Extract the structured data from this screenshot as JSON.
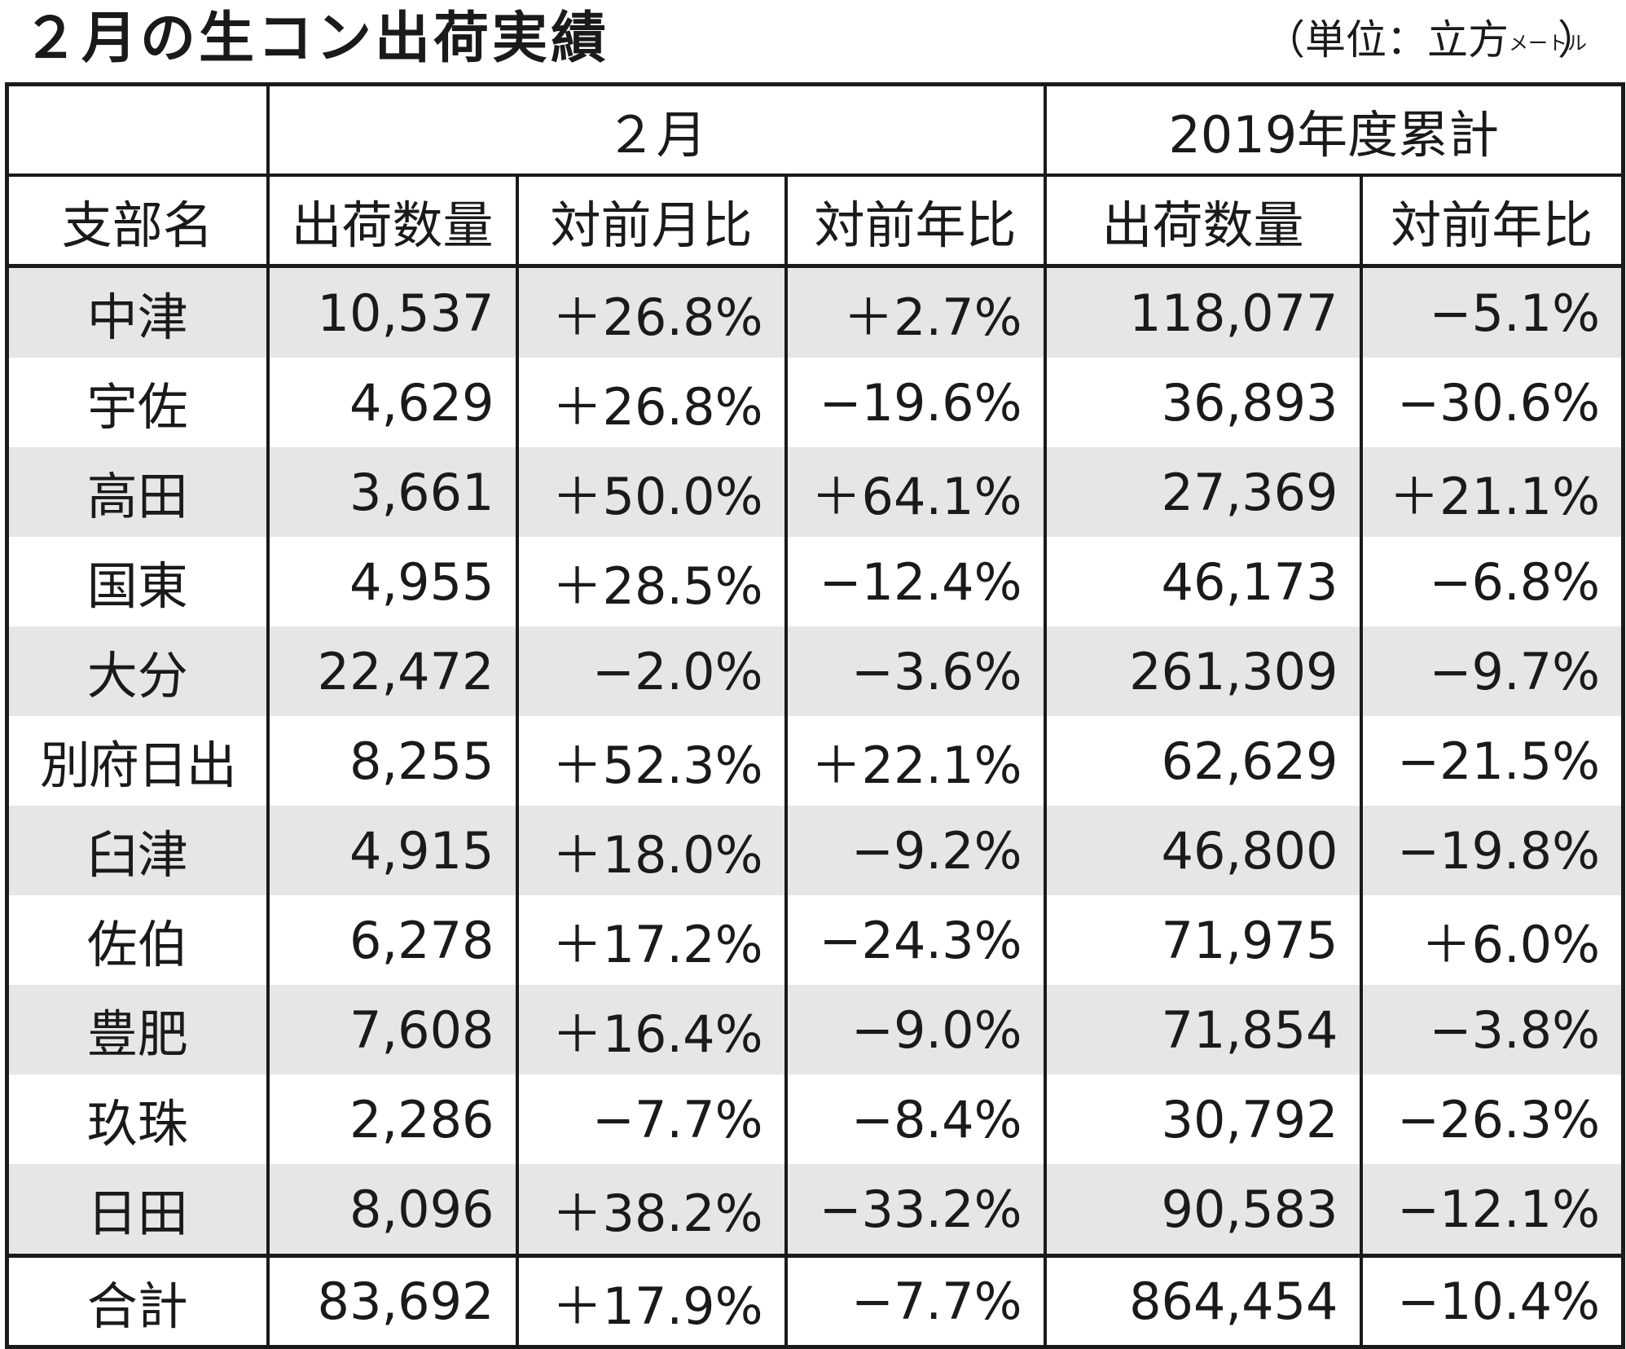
{
  "title": "２月の生コン出荷実績",
  "unit": {
    "prefix": "（単位：立方",
    "meter": "メートル",
    "suffix": "）"
  },
  "headers": {
    "group_month": "２月",
    "group_cumulative": "2019年度累計",
    "branch": "支部名",
    "month_quantity": "出荷数量",
    "month_mom": "対前月比",
    "month_yoy": "対前年比",
    "cum_quantity": "出荷数量",
    "cum_yoy": "対前年比"
  },
  "rows": [
    [
      "中津",
      "10,537",
      "＋26.8%",
      "＋2.7%",
      "118,077",
      "−5.1%"
    ],
    [
      "宇佐",
      "4,629",
      "＋26.8%",
      "−19.6%",
      "36,893",
      "−30.6%"
    ],
    [
      "高田",
      "3,661",
      "＋50.0%",
      "＋64.1%",
      "27,369",
      "＋21.1%"
    ],
    [
      "国東",
      "4,955",
      "＋28.5%",
      "−12.4%",
      "46,173",
      "−6.8%"
    ],
    [
      "大分",
      "22,472",
      "−2.0%",
      "−3.6%",
      "261,309",
      "−9.7%"
    ],
    [
      "別府日出",
      "8,255",
      "＋52.3%",
      "＋22.1%",
      "62,629",
      "−21.5%"
    ],
    [
      "臼津",
      "4,915",
      "＋18.0%",
      "−9.2%",
      "46,800",
      "−19.8%"
    ],
    [
      "佐伯",
      "6,278",
      "＋17.2%",
      "−24.3%",
      "71,975",
      "＋6.0%"
    ],
    [
      "豊肥",
      "7,608",
      "＋16.4%",
      "−9.0%",
      "71,854",
      "−3.8%"
    ],
    [
      "玖珠",
      "2,286",
      "−7.7%",
      "−8.4%",
      "30,792",
      "−26.3%"
    ],
    [
      "日田",
      "8,096",
      "＋38.2%",
      "−33.2%",
      "90,583",
      "−12.1%"
    ]
  ],
  "total": [
    "合計",
    "83,692",
    "＋17.9%",
    "−7.7%",
    "864,454",
    "−10.4%"
  ]
}
